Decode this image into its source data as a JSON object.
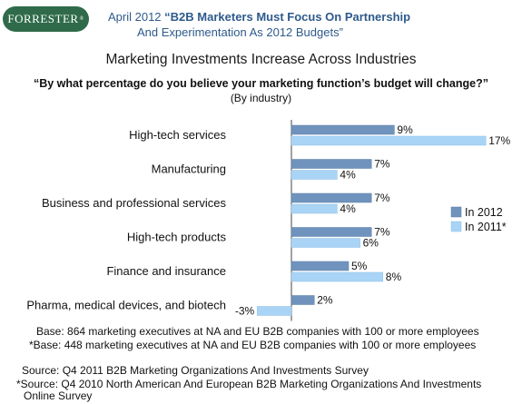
{
  "brand": {
    "logo_text": "FORRESTER",
    "logo_mark": "®"
  },
  "header": {
    "date": "April 2012",
    "report_line1": "“B2B Marketers Must Focus On Partnership",
    "report_line2": "And Experimentation As 2012 Budgets”"
  },
  "chart_data": {
    "type": "bar",
    "orientation": "horizontal",
    "title": "Marketing Investments Increase Across Industries",
    "subtitle": "“By what percentage do you believe your marketing function’s budget will change?”",
    "subtitle2": "(By industry)",
    "categories": [
      "High-tech services",
      "Manufacturing",
      "Business and professional services",
      "High-tech products",
      "Finance and insurance",
      "Pharma, medical devices, and biotech"
    ],
    "series": [
      {
        "name": "In 2012",
        "color": "#6f93bd",
        "values": [
          9,
          7,
          7,
          7,
          5,
          2
        ],
        "labels": [
          "9%",
          "7%",
          "7%",
          "7%",
          "5%",
          "2%"
        ]
      },
      {
        "name": "In 2011*",
        "color": "#a9d4f5",
        "values": [
          17,
          4,
          4,
          6,
          8,
          -3
        ],
        "labels": [
          "17%",
          "4%",
          "4%",
          "6%",
          "8%",
          "-3%"
        ]
      }
    ],
    "xlim": [
      -3,
      17
    ],
    "grid": false,
    "legend_position": "right"
  },
  "footnotes": {
    "base1": "Base: 864 marketing executives at NA and EU B2B companies with 100 or more employees",
    "base2": "*Base: 448 marketing executives at NA and EU B2B companies with 100 or more employees",
    "source1": "Source: Q4 2011 B2B Marketing Organizations And Investments Survey",
    "source2": "*Source: Q4 2010 North American And European B2B Marketing Organizations And Investments",
    "source3": "Online Survey"
  }
}
